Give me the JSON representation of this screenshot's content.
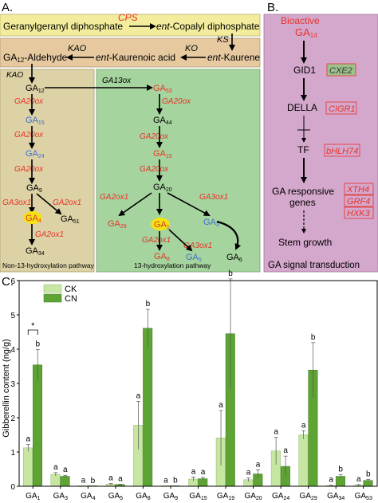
{
  "panel_a": {
    "label": "A.",
    "top": {
      "ggpp": "Geranylgeranyl diphosphate",
      "cps": "CPS",
      "cpp_prefix": "ent",
      "cpp_rest": "-Copalyl diphosphate",
      "ks": "KS",
      "kaurene_prefix": "ent",
      "kaurene_rest": "-Kaurene",
      "ko": "KO",
      "acid_prefix": "ent",
      "acid_rest": "-Kaurenoic acid",
      "kao": "KAO",
      "ald_main": "GA",
      "ald_sub": "12",
      "ald_rest": "-Aldehyde"
    },
    "non13": {
      "caption": "Non-13-hydroxylation pathway",
      "kao": "KAO",
      "ga12": [
        "GA",
        "12"
      ],
      "ga15": [
        "GA",
        "15"
      ],
      "ga24": [
        "GA",
        "24"
      ],
      "ga9": [
        "GA",
        "9"
      ],
      "ga4": [
        "GA",
        "4"
      ],
      "ga51": [
        "GA",
        "51"
      ],
      "ga34": [
        "GA",
        "34"
      ],
      "e1": "GA20ox",
      "e2": "GA20ox",
      "e3": "GA20ox",
      "e4": "GA3ox1",
      "e5": "GA2ox1",
      "e6": "GA2ox1"
    },
    "thirteen": {
      "caption": "13-hydroxylation pathway",
      "ga13ox": "GA13ox",
      "ga53": [
        "GA",
        "53"
      ],
      "ga44": [
        "GA",
        "44"
      ],
      "ga19": [
        "GA",
        "19"
      ],
      "ga20": [
        "GA",
        "20"
      ],
      "ga29": [
        "GA",
        "29"
      ],
      "ga1": [
        "GA",
        "1"
      ],
      "ga5": [
        "GA",
        "5"
      ],
      "ga8": [
        "GA",
        "8"
      ],
      "ga3": [
        "GA",
        "3"
      ],
      "ga6": [
        "GA",
        "6"
      ],
      "e1": "GA20ox",
      "e2": "GA20ox",
      "e3": "GA20ox",
      "e4": "GA2ox1",
      "e5": "GA3ox1",
      "e6": "GA2ox1",
      "e7": "GA3ox1"
    }
  },
  "panel_b": {
    "label": "B.",
    "bioactive": "Bioactive",
    "ga14": [
      "GA",
      "14"
    ],
    "gid1": "GID1",
    "cxe2": "CXE2",
    "della": "DELLA",
    "cigr1": "CIGR1",
    "tf": "TF",
    "bhlh74": "bHLH74",
    "responsive_1": "GA responsive",
    "responsive_2": "genes",
    "xth4": "XTH4",
    "grf4": "GRF4",
    "hxk3": "HXK3",
    "stem": "Stem growth",
    "caption": "GA signal transduction"
  },
  "colors": {
    "top_yellow": "#f2ec9c",
    "top_tan": "#e6c99f",
    "left_panel": "#dcd2a6",
    "right_panel": "#a6d49e",
    "panel_b": "#d4a7cc",
    "enzyme_red": "#e8332a",
    "ga_blue": "#3f6fd0",
    "highlight": "#f3e316",
    "ck": "#c7e6a2",
    "cn": "#5ea434"
  },
  "chart_data": {
    "type": "bar",
    "panel_label": "C.",
    "ylabel": "Gibberellin content (ng/g)",
    "ylim": [
      0,
      6
    ],
    "yticks": [
      0,
      1,
      2,
      3,
      4,
      5,
      6
    ],
    "categories": [
      {
        "main": "GA",
        "sub": "1"
      },
      {
        "main": "GA",
        "sub": "3"
      },
      {
        "main": "GA",
        "sub": "4"
      },
      {
        "main": "GA",
        "sub": "5"
      },
      {
        "main": "GA",
        "sub": "8"
      },
      {
        "main": "GA",
        "sub": "9"
      },
      {
        "main": "GA",
        "sub": "15"
      },
      {
        "main": "GA",
        "sub": "19"
      },
      {
        "main": "GA",
        "sub": "20"
      },
      {
        "main": "GA",
        "sub": "24"
      },
      {
        "main": "GA",
        "sub": "29"
      },
      {
        "main": "GA",
        "sub": "34"
      },
      {
        "main": "GA",
        "sub": "53"
      }
    ],
    "series": [
      {
        "name": "CK",
        "values": [
          1.12,
          0.35,
          0.01,
          0.06,
          1.78,
          0.01,
          0.21,
          1.41,
          0.19,
          1.03,
          1.5,
          0.02,
          0.03
        ],
        "errors": [
          0.1,
          0.05,
          0.0,
          0.02,
          0.7,
          0.0,
          0.06,
          0.8,
          0.05,
          0.4,
          0.12,
          0.01,
          0.02
        ],
        "letters": [
          "a",
          "a",
          "a",
          "a",
          "a",
          "a",
          "a",
          "a",
          "a",
          "a",
          "a",
          "a",
          "a"
        ]
      },
      {
        "name": "CN",
        "values": [
          3.54,
          0.29,
          0.0,
          0.05,
          4.61,
          0.01,
          0.22,
          4.45,
          0.36,
          0.58,
          3.39,
          0.29,
          0.17
        ],
        "errors": [
          0.45,
          0.03,
          0.0,
          0.01,
          0.55,
          0.0,
          0.04,
          1.6,
          0.12,
          0.3,
          0.8,
          0.05,
          0.03
        ],
        "letters": [
          "b",
          "a",
          "b",
          "a",
          "b",
          "b",
          "a",
          "b",
          "a",
          "a",
          "b",
          "b",
          "b"
        ]
      }
    ],
    "significance": {
      "category_index": 0,
      "label": "*"
    },
    "legend_position": "top-left"
  }
}
